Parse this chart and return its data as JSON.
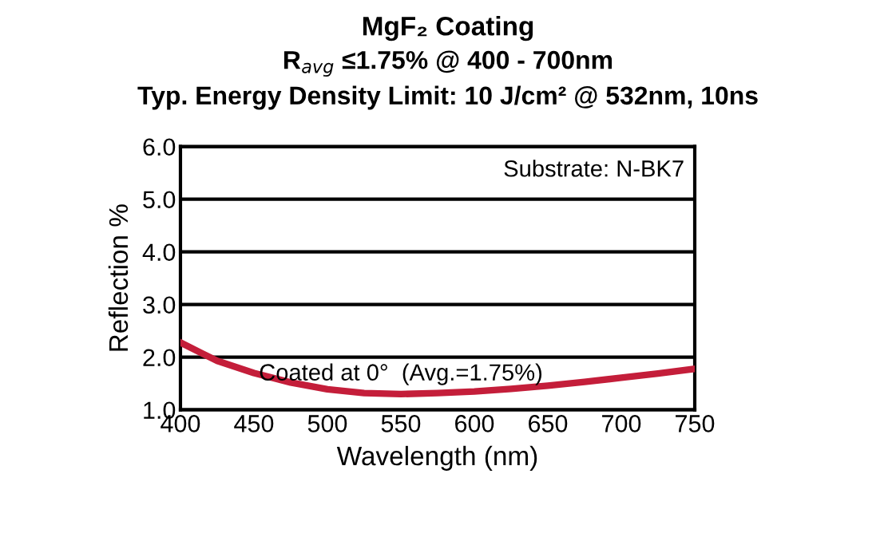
{
  "chart_data": {
    "type": "line",
    "title": "MgF₂ Coating",
    "subtitle": "R$_{avg}$ ≤1.75% @ 400 - 700nm\nTyp. Energy Density Limit: 10 J/cm² @ 532nm, 10ns",
    "xlabel": "Wavelength (nm)",
    "ylabel": "Reflection %",
    "x": [
      400,
      425,
      450,
      475,
      500,
      525,
      550,
      575,
      600,
      625,
      650,
      675,
      700,
      725,
      750
    ],
    "series": [
      {
        "color": "#c41e3a",
        "values": [
          2.28,
          1.93,
          1.7,
          1.52,
          1.39,
          1.32,
          1.3,
          1.32,
          1.35,
          1.4,
          1.46,
          1.53,
          1.61,
          1.69,
          1.78
        ]
      }
    ],
    "xlim": [
      400,
      750
    ],
    "xticks": [
      400,
      450,
      500,
      550,
      600,
      650,
      700,
      750
    ],
    "ylim": [
      1,
      6
    ],
    "yticks": [
      {
        "value": 1,
        "label": "1.0"
      },
      {
        "value": 2,
        "label": "2.0"
      },
      {
        "value": 3,
        "label": "3.0"
      },
      {
        "value": 4,
        "label": "4.0"
      },
      {
        "value": 5,
        "label": "5.0"
      },
      {
        "value": 6,
        "label": "6.0"
      }
    ],
    "grid": "y",
    "marker": "none",
    "line_style": "solid",
    "annotations": [
      "Substrate: N-BK7",
      {
        "text": "Coated at 0°  (Avg.=1.75%)",
        "x": 550,
        "y": 1.3
      }
    ]
  }
}
